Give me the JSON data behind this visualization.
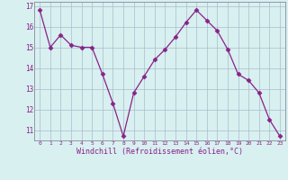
{
  "x": [
    0,
    1,
    2,
    3,
    4,
    5,
    6,
    7,
    8,
    9,
    10,
    11,
    12,
    13,
    14,
    15,
    16,
    17,
    18,
    19,
    20,
    21,
    22,
    23
  ],
  "y": [
    16.8,
    15.0,
    15.6,
    15.1,
    15.0,
    15.0,
    13.7,
    12.3,
    10.7,
    12.8,
    13.6,
    14.4,
    14.9,
    15.5,
    16.2,
    16.8,
    16.3,
    15.8,
    14.9,
    13.7,
    13.4,
    12.8,
    11.5,
    10.7
  ],
  "line_color": "#882288",
  "marker": "D",
  "marker_size": 2.5,
  "bg_color": "#d8f0f0",
  "grid_color": "#aabbcc",
  "xlabel": "Windchill (Refroidissement éolien,°C)",
  "xlabel_color": "#882288",
  "tick_color": "#882288",
  "ylim": [
    10.5,
    17.2
  ],
  "yticks": [
    11,
    12,
    13,
    14,
    15,
    16,
    17
  ],
  "xticks": [
    0,
    1,
    2,
    3,
    4,
    5,
    6,
    7,
    8,
    9,
    10,
    11,
    12,
    13,
    14,
    15,
    16,
    17,
    18,
    19,
    20,
    21,
    22,
    23
  ],
  "figsize": [
    3.2,
    2.0
  ],
  "dpi": 100
}
